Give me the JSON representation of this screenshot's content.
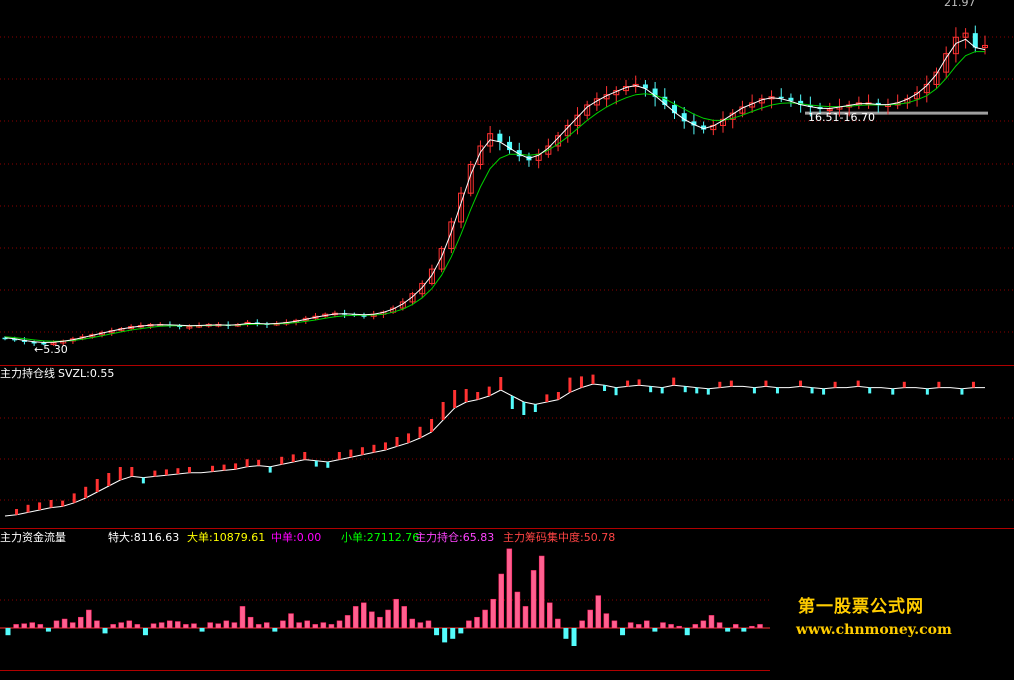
{
  "panels": {
    "price": {
      "high_label": "21.97",
      "low_label": "←5.30",
      "range_label": "16.51-16.70"
    },
    "holding": {
      "title": "主力持仓线",
      "svzl": "SVZL:0.55"
    },
    "flow": {
      "title": "主力资金流量",
      "stats": [
        {
          "label": "特大:8116.63",
          "color": "#ffffff"
        },
        {
          "label": "大单:10879.61",
          "color": "#ffff00"
        },
        {
          "label": "中单:0.00",
          "color": "#ff00ff"
        },
        {
          "label": "小单:27112.76",
          "color": "#00ff00"
        },
        {
          "label": "主力持仓:65.83",
          "color": "#ff44ff"
        },
        {
          "label": "主力筹码集中度:50.78",
          "color": "#ff4444"
        }
      ]
    }
  },
  "watermark": {
    "line1": "第一股票公式网",
    "line2": "www.chnmoney.com"
  },
  "colors": {
    "up": "#ff3232",
    "down": "#54fcfc",
    "ma_fast": "#ffffff",
    "ma_slow": "#00d000",
    "grid": "#8b0000",
    "separator": "#b00000",
    "holding_line": "#ffffff",
    "pink": "#ff6090",
    "resistance": "#a0a0a0"
  },
  "chart_data": {
    "type": "candlestick",
    "price_range": [
      5.3,
      21.97
    ],
    "price_close": [
      5.6,
      5.55,
      5.45,
      5.4,
      5.35,
      5.4,
      5.5,
      5.6,
      5.7,
      5.8,
      5.9,
      6.0,
      6.1,
      6.2,
      6.25,
      6.3,
      6.3,
      6.25,
      6.2,
      6.2,
      6.25,
      6.3,
      6.3,
      6.25,
      6.3,
      6.4,
      6.35,
      6.3,
      6.35,
      6.4,
      6.5,
      6.6,
      6.7,
      6.8,
      6.85,
      6.8,
      6.75,
      6.7,
      6.8,
      6.9,
      7.1,
      7.4,
      7.8,
      8.3,
      9.0,
      10.0,
      11.3,
      12.7,
      14.1,
      15.0,
      15.6,
      15.2,
      14.8,
      14.5,
      14.3,
      14.6,
      15.0,
      15.5,
      16.0,
      16.5,
      17.0,
      17.3,
      17.5,
      17.7,
      17.9,
      18.0,
      17.8,
      17.4,
      17.0,
      16.6,
      16.2,
      16.0,
      15.8,
      16.0,
      16.3,
      16.6,
      16.9,
      17.1,
      17.3,
      17.4,
      17.35,
      17.2,
      17.0,
      16.9,
      16.8,
      16.8,
      16.9,
      17.0,
      17.1,
      17.1,
      17.0,
      17.0,
      17.1,
      17.3,
      17.6,
      18.0,
      18.6,
      19.5,
      20.3,
      20.5,
      19.8,
      19.9
    ],
    "ma_fast": [
      5.65,
      5.6,
      5.52,
      5.46,
      5.42,
      5.43,
      5.48,
      5.56,
      5.66,
      5.77,
      5.88,
      5.98,
      6.08,
      6.16,
      6.22,
      6.27,
      6.29,
      6.28,
      6.26,
      6.24,
      6.25,
      6.27,
      6.28,
      6.27,
      6.29,
      6.35,
      6.35,
      6.33,
      6.35,
      6.39,
      6.46,
      6.55,
      6.65,
      6.74,
      6.81,
      6.82,
      6.8,
      6.77,
      6.8,
      6.89,
      7.05,
      7.3,
      7.65,
      8.1,
      8.7,
      9.6,
      10.8,
      12.2,
      13.6,
      14.7,
      15.3,
      15.2,
      14.9,
      14.6,
      14.4,
      14.55,
      14.9,
      15.4,
      15.9,
      16.4,
      16.9,
      17.2,
      17.45,
      17.65,
      17.85,
      17.95,
      17.8,
      17.45,
      17.05,
      16.65,
      16.3,
      16.05,
      15.85,
      15.98,
      16.25,
      16.55,
      16.85,
      17.05,
      17.25,
      17.35,
      17.3,
      17.18,
      17.02,
      16.92,
      16.84,
      16.83,
      16.9,
      16.98,
      17.06,
      17.07,
      17.02,
      17.02,
      17.1,
      17.28,
      17.55,
      17.95,
      18.5,
      19.3,
      20.0,
      20.2,
      19.8,
      19.7
    ],
    "ma_slow": [
      5.7,
      5.66,
      5.6,
      5.55,
      5.5,
      5.48,
      5.48,
      5.52,
      5.58,
      5.66,
      5.75,
      5.85,
      5.94,
      6.03,
      6.1,
      6.16,
      6.21,
      6.23,
      6.24,
      6.24,
      6.24,
      6.25,
      6.26,
      6.26,
      6.27,
      6.3,
      6.32,
      6.32,
      6.33,
      6.35,
      6.39,
      6.45,
      6.52,
      6.6,
      6.68,
      6.73,
      6.75,
      6.75,
      6.76,
      6.8,
      6.9,
      7.05,
      7.28,
      7.6,
      8.05,
      8.7,
      9.6,
      10.7,
      11.9,
      13.0,
      13.9,
      14.4,
      14.6,
      14.6,
      14.55,
      14.6,
      14.8,
      15.1,
      15.45,
      15.85,
      16.25,
      16.6,
      16.9,
      17.15,
      17.35,
      17.5,
      17.55,
      17.48,
      17.3,
      17.05,
      16.8,
      16.55,
      16.35,
      16.25,
      16.25,
      16.35,
      16.5,
      16.68,
      16.85,
      17.0,
      17.08,
      17.1,
      17.06,
      17.0,
      16.95,
      16.92,
      16.92,
      16.94,
      16.98,
      17.0,
      17.0,
      17.0,
      17.03,
      17.1,
      17.25,
      17.45,
      17.8,
      18.3,
      18.9,
      19.4,
      19.6,
      19.6
    ],
    "holding_line": [
      0.05,
      0.06,
      0.08,
      0.1,
      0.12,
      0.13,
      0.16,
      0.2,
      0.25,
      0.3,
      0.35,
      0.38,
      0.37,
      0.38,
      0.39,
      0.4,
      0.41,
      0.41,
      0.42,
      0.43,
      0.44,
      0.46,
      0.47,
      0.46,
      0.48,
      0.5,
      0.52,
      0.51,
      0.5,
      0.52,
      0.54,
      0.56,
      0.58,
      0.6,
      0.63,
      0.66,
      0.7,
      0.75,
      0.85,
      0.95,
      1.0,
      1.02,
      1.05,
      1.1,
      1.05,
      1.0,
      0.98,
      1.0,
      1.02,
      1.08,
      1.12,
      1.15,
      1.14,
      1.12,
      1.13,
      1.14,
      1.13,
      1.12,
      1.14,
      1.13,
      1.12,
      1.11,
      1.12,
      1.13,
      1.13,
      1.12,
      1.13,
      1.12,
      1.12,
      1.13,
      1.12,
      1.11,
      1.12,
      1.12,
      1.13,
      1.12,
      1.12,
      1.11,
      1.12,
      1.12,
      1.11,
      1.12,
      1.12,
      1.11,
      1.12,
      1.12
    ],
    "flow_bars": [
      -0.2,
      0.1,
      0.12,
      0.15,
      0.1,
      -0.1,
      0.2,
      0.25,
      0.15,
      0.3,
      0.5,
      0.2,
      -0.15,
      0.1,
      0.15,
      0.2,
      0.1,
      -0.2,
      0.12,
      0.15,
      0.2,
      0.18,
      0.1,
      0.12,
      -0.1,
      0.15,
      0.12,
      0.2,
      0.15,
      0.6,
      0.3,
      0.1,
      0.15,
      -0.1,
      0.2,
      0.4,
      0.15,
      0.2,
      0.1,
      0.15,
      0.1,
      0.2,
      0.35,
      0.6,
      0.7,
      0.45,
      0.3,
      0.5,
      0.8,
      0.6,
      0.25,
      0.15,
      0.2,
      -0.2,
      -0.4,
      -0.3,
      -0.15,
      0.2,
      0.3,
      0.5,
      0.8,
      1.5,
      2.2,
      1.0,
      0.6,
      1.6,
      2.0,
      0.7,
      0.25,
      -0.3,
      -0.5,
      0.2,
      0.5,
      0.9,
      0.4,
      0.2,
      -0.2,
      0.15,
      0.1,
      0.2,
      -0.1,
      0.15,
      0.1,
      0.05,
      -0.2,
      0.1,
      0.2,
      0.35,
      0.15,
      -0.1,
      0.1,
      -0.1,
      0.05,
      0.1
    ]
  }
}
